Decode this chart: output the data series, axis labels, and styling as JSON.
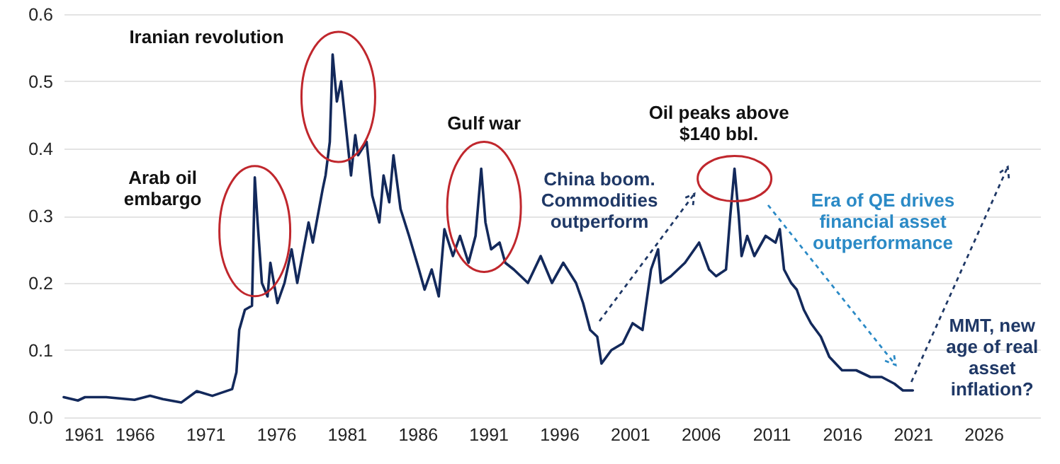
{
  "chart_data": {
    "type": "line",
    "x": [
      1961,
      1962,
      1962.5,
      1964,
      1966,
      1967.1,
      1968,
      1969.3,
      1970.4,
      1971.5,
      1972.9,
      1973.2,
      1973.4,
      1973.8,
      1974.3,
      1974.5,
      1974.7,
      1975.0,
      1975.4,
      1975.6,
      1976.1,
      1976.6,
      1977.1,
      1977.5,
      1978.3,
      1978.6,
      1979.3,
      1979.5,
      1979.8,
      1980.0,
      1980.3,
      1980.6,
      1981.0,
      1981.3,
      1981.6,
      1981.8,
      1982.4,
      1982.8,
      1983.3,
      1983.6,
      1984.0,
      1984.3,
      1984.8,
      1985.4,
      1986.1,
      1986.5,
      1987.0,
      1987.5,
      1987.9,
      1988.5,
      1989.0,
      1989.6,
      1990.1,
      1990.5,
      1990.8,
      1991.2,
      1991.8,
      1992.2,
      1992.8,
      1993.8,
      1994.7,
      1995.5,
      1996.3,
      1997.2,
      1997.7,
      1998.2,
      1998.7,
      1999.0,
      1999.7,
      2000.5,
      2001.2,
      2001.9,
      2002.5,
      2003.0,
      2003.2,
      2003.9,
      2004.9,
      2005.9,
      2006.6,
      2007.1,
      2007.8,
      2008.1,
      2008.4,
      2008.7,
      2008.9,
      2009.3,
      2009.8,
      2010.6,
      2011.3,
      2011.6,
      2011.9,
      2012.4,
      2012.8,
      2013.3,
      2013.8,
      2014.5,
      2015.1,
      2016.0,
      2017.0,
      2018.0,
      2018.8,
      2019.7,
      2020.3,
      2021.0
    ],
    "series": [
      {
        "color": "#13295b",
        "values": [
          0.03,
          0.025,
          0.03,
          0.03,
          0.026,
          0.032,
          0.027,
          0.022,
          0.039,
          0.032,
          0.042,
          0.067,
          0.13,
          0.16,
          0.166,
          0.357,
          0.29,
          0.2,
          0.18,
          0.23,
          0.17,
          0.2,
          0.25,
          0.2,
          0.29,
          0.26,
          0.34,
          0.36,
          0.41,
          0.54,
          0.47,
          0.5,
          0.42,
          0.36,
          0.42,
          0.39,
          0.41,
          0.33,
          0.29,
          0.36,
          0.32,
          0.39,
          0.31,
          0.27,
          0.22,
          0.19,
          0.22,
          0.18,
          0.28,
          0.24,
          0.27,
          0.23,
          0.27,
          0.37,
          0.29,
          0.25,
          0.26,
          0.23,
          0.22,
          0.2,
          0.24,
          0.2,
          0.23,
          0.2,
          0.17,
          0.13,
          0.12,
          0.08,
          0.1,
          0.11,
          0.14,
          0.13,
          0.22,
          0.25,
          0.2,
          0.21,
          0.23,
          0.26,
          0.22,
          0.21,
          0.22,
          0.3,
          0.37,
          0.3,
          0.24,
          0.27,
          0.24,
          0.27,
          0.26,
          0.28,
          0.22,
          0.2,
          0.19,
          0.16,
          0.14,
          0.12,
          0.09,
          0.07,
          0.07,
          0.06,
          0.06,
          0.05,
          0.04,
          0.04
        ]
      }
    ],
    "xlim": [
      1961,
      2030
    ],
    "xticks": [
      1961,
      1966,
      1971,
      1976,
      1981,
      1986,
      1991,
      1996,
      2001,
      2006,
      2011,
      2016,
      2021,
      2026
    ],
    "ylim": [
      0,
      0.6
    ],
    "yticks": [
      {
        "value": 0,
        "label": "0.0"
      },
      0.1,
      0.2,
      0.3,
      0.4,
      0.5,
      0.6
    ],
    "grid": "y",
    "line_style": "solid",
    "annotations": [
      {
        "text": "Arab oil\nembargo",
        "x": 1974.5,
        "y": 0.357
      },
      {
        "text": "Iranian revolution",
        "x": 1980.0,
        "y": 0.54
      },
      {
        "text": "Gulf war",
        "x": 1990.5,
        "y": 0.37
      },
      {
        "text": "Oil peaks above\n$140 bbl.",
        "x": 2008.4,
        "y": 0.37
      },
      "China boom.\nCommodities\noutperform",
      "Era of QE drives\nfinancial asset\noutperformance",
      {
        "text": "MMT, new\nage of real\nasset\ninflation?",
        "x": 2021.0,
        "y": 0.04
      }
    ]
  }
}
